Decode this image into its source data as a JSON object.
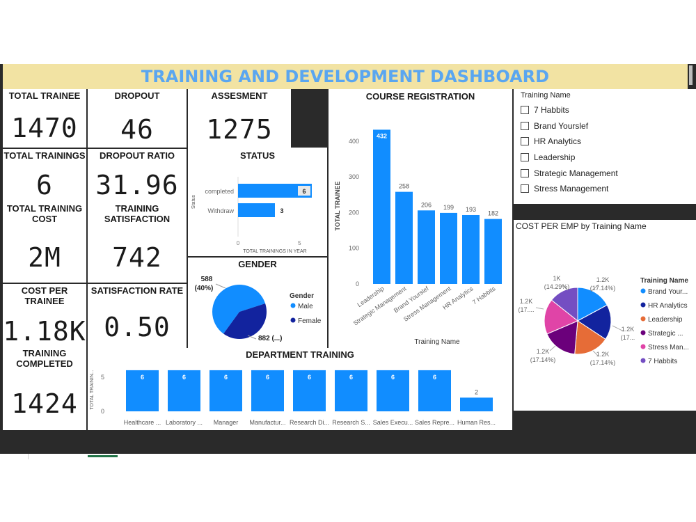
{
  "title": "TRAINING AND DEVELOPMENT DASHBOARD",
  "kpis": {
    "total_trainee": {
      "label": "TOTAL TRAINEE",
      "value": "1470"
    },
    "dropout": {
      "label": "DROPOUT",
      "value": "46"
    },
    "assesment": {
      "label": "ASSESMENT",
      "value": "1275"
    },
    "total_trainings": {
      "label": "TOTAL TRAININGS",
      "value": "6"
    },
    "dropout_ratio": {
      "label": "DROPOUT RATIO",
      "value": "31.96"
    },
    "total_training_cost": {
      "label_1": "TOTAL TRAINING",
      "label_2": "COST",
      "value": "2M"
    },
    "training_satisfaction": {
      "label_1": "TRAINING",
      "label_2": "SATISFACTION",
      "value": "742"
    },
    "cost_per_trainee": {
      "label_1": "COST PER",
      "label_2": "TRAINEE",
      "value": "1.18K"
    },
    "satisfaction_rate": {
      "label": "SATISFACTION RATE",
      "value": "0.50"
    },
    "training_completed": {
      "label_1": "TRAINING",
      "label_2": "COMPLETED",
      "value": "1424"
    }
  },
  "slicer": {
    "title": "Training Name",
    "items": [
      "7 Habbits",
      "Brand Yourslef",
      "HR Analytics",
      "Leadership",
      "Strategic Management",
      "Stress Management"
    ]
  },
  "chart_data": [
    {
      "id": "status",
      "type": "bar",
      "orientation": "horizontal",
      "title": "STATUS",
      "xlabel": "TOTAL TRAININGS IN YEAR",
      "ylabel": "Status",
      "categories": [
        "completed",
        "Withdraw"
      ],
      "values": [
        6,
        3
      ],
      "xlim": [
        0,
        6
      ],
      "ticks": [
        "0",
        "5"
      ],
      "color": "#118dff"
    },
    {
      "id": "course_registration",
      "type": "bar",
      "title": "COURSE REGISTRATION",
      "xlabel": "Training Name",
      "ylabel": "TOTAL TRAINEE",
      "categories": [
        "Leadership",
        "Strategic Management",
        "Brand Yourslef",
        "Stress Management",
        "HR Analytics",
        "7 Habbits"
      ],
      "values": [
        432,
        258,
        206,
        199,
        193,
        182
      ],
      "ylim": [
        0,
        450
      ],
      "ticks": [
        "0",
        "100",
        "200",
        "300",
        "400"
      ],
      "color": "#118dff"
    },
    {
      "id": "gender",
      "type": "pie",
      "title": "GENDER",
      "legend_title": "Gender",
      "slices": [
        {
          "name": "Male",
          "value": 882,
          "label": "882 (...)",
          "color": "#118dff"
        },
        {
          "name": "Female",
          "value": 588,
          "label_1": "588",
          "label_2": "(40%)",
          "color": "#12239e"
        }
      ]
    },
    {
      "id": "department_training",
      "type": "bar",
      "title": "DEPARTMENT TRAINING",
      "ylabel": "TOTAL TRAININ...",
      "categories": [
        "Healthcare ...",
        "Laboratory ...",
        "Manager",
        "Manufactur...",
        "Research Di...",
        "Research S...",
        "Sales Execu...",
        "Sales Repre...",
        "Human Res..."
      ],
      "values": [
        6,
        6,
        6,
        6,
        6,
        6,
        6,
        6,
        2
      ],
      "ylim": [
        0,
        6.5
      ],
      "ticks": [
        "0",
        "5"
      ],
      "color": "#118dff"
    },
    {
      "id": "cost_per_emp",
      "type": "pie",
      "title": "COST PER EMP by Training Name",
      "legend_title": "Training Name",
      "slices": [
        {
          "name": "Brand Your...",
          "value": 17.14,
          "label_1": "1.2K",
          "label_2": "(17.14%)",
          "color": "#118dff"
        },
        {
          "name": "HR Analytics",
          "value": 17.14,
          "label_1": "1.2K",
          "label_2": "(17...",
          "color": "#12239e"
        },
        {
          "name": "Leadership",
          "value": 17.14,
          "label_1": "1.2K",
          "label_2": "(17.14%)",
          "color": "#e66c37"
        },
        {
          "name": "Strategic ...",
          "value": 17.14,
          "label_1": "1.2K",
          "label_2": "(17.14%)",
          "color": "#6b007b"
        },
        {
          "name": "Stress Man...",
          "value": 17.14,
          "label_1": "1.2K",
          "label_2": "(17....",
          "color": "#e044a7"
        },
        {
          "name": "7 Habbits",
          "value": 14.29,
          "label_1": "1K",
          "label_2": "(14.29%)",
          "color": "#744ec2"
        }
      ]
    }
  ]
}
